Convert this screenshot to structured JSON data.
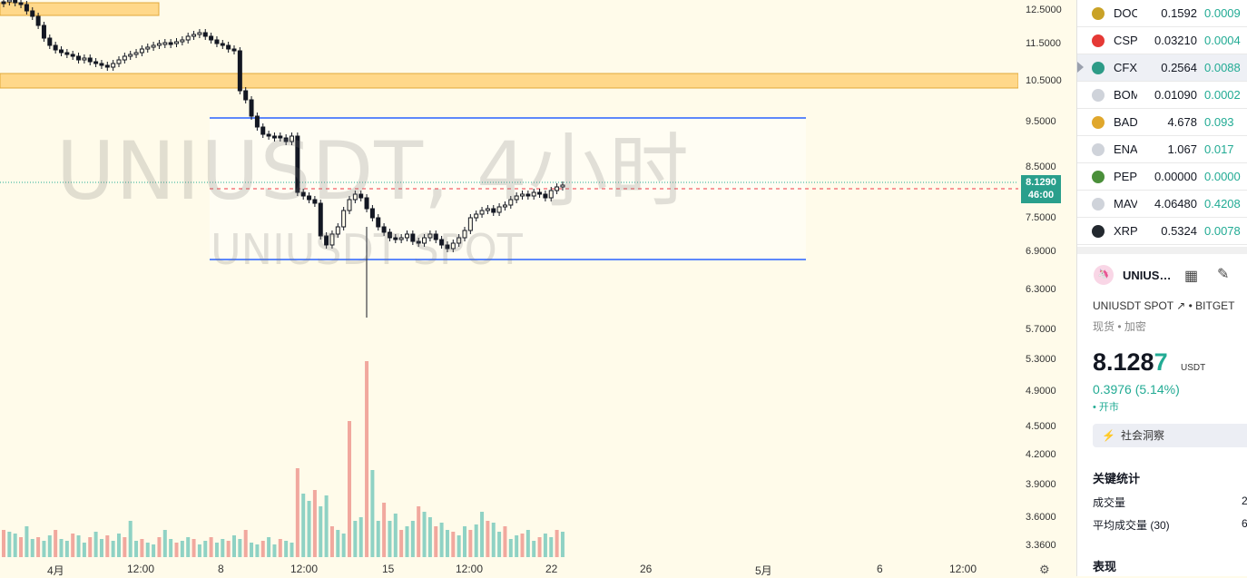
{
  "chart": {
    "watermark_symbol": "UNIUSDT, 4小时",
    "watermark_sub": "UNIUSDT SPOT",
    "price_axis": [
      "12.5000",
      "11.5000",
      "10.5000",
      "9.5000",
      "8.5000",
      "7.5000",
      "6.9000",
      "6.3000",
      "5.7000",
      "5.3000",
      "4.9000",
      "4.5000",
      "4.2000",
      "3.9000",
      "3.6000",
      "3.3600"
    ],
    "current_price": "8.1290",
    "countdown": "46:00",
    "time_axis": [
      "4月",
      "12:00",
      "8",
      "12:00",
      "15",
      "12:00",
      "22",
      "26",
      "5月",
      "6",
      "12:00"
    ],
    "colors": {
      "up": "#22ab94",
      "down": "#f23645",
      "zone": "#ffd88a",
      "range_line": "#2962ff"
    }
  },
  "watchlist": [
    {
      "symbol": "DOC",
      "last": "0.1592",
      "change": "0.0009",
      "icon": "doc-coin-icon",
      "icon_color": "#c9a227"
    },
    {
      "symbol": "CSP",
      "last": "0.03210",
      "change": "0.0004",
      "icon": "csp-coin-icon",
      "icon_color": "#e53935"
    },
    {
      "symbol": "CFX",
      "last": "0.2564",
      "change": "0.0088",
      "icon": "cfx-coin-icon",
      "icon_color": "#2d9b87"
    },
    {
      "symbol": "BOM",
      "last": "0.01090",
      "change": "0.0002",
      "icon": "bom-coin-icon",
      "icon_color": "#cfd3da"
    },
    {
      "symbol": "BAD",
      "last": "4.678",
      "change": "0.093",
      "icon": "bad-coin-icon",
      "icon_color": "#e0a72c"
    },
    {
      "symbol": "ENA",
      "last": "1.067",
      "change": "0.017",
      "icon": "ena-coin-icon",
      "icon_color": "#cfd3da"
    },
    {
      "symbol": "PEP",
      "last": "0.00000",
      "change": "0.0000",
      "icon": "pep-coin-icon",
      "icon_color": "#4a8f3a"
    },
    {
      "symbol": "MAV",
      "last": "4.06480",
      "change": "0.4208",
      "icon": "mav-coin-icon",
      "icon_color": "#cfd3da"
    },
    {
      "symbol": "XRP",
      "last": "0.5324",
      "change": "0.0078",
      "icon": "xrp-coin-icon",
      "icon_color": "#23292f"
    }
  ],
  "details": {
    "title": "UNIUS…",
    "subtitle": "UNIUSDT SPOT ↗ • BITGET",
    "category": "现货 • 加密",
    "price_main": "8.128",
    "price_last": "7",
    "unit": "USDT",
    "change": "0.3976 (5.14%)",
    "market_status": "• 开市",
    "insights_button": "社会洞察",
    "stats_heading": "关键统计",
    "volume_label": "成交量",
    "volume_value": "2",
    "avg_volume_label": "平均成交量 (30)",
    "avg_volume_value": "6",
    "performance_heading": "表现"
  }
}
